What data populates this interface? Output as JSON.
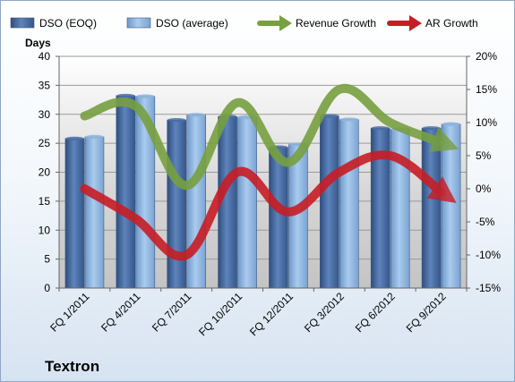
{
  "company_label": "Textron",
  "chart_data": {
    "type": "bar",
    "title": "",
    "left_axis_title": "Days",
    "categories": [
      "FQ 1/2011",
      "FQ 4/2011",
      "FQ 7/2011",
      "FQ 10/2011",
      "FQ 12/2011",
      "FQ 3/2012",
      "FQ 6/2012",
      "FQ 9/2012"
    ],
    "ylim": [
      0,
      40
    ],
    "yticks": [
      "0",
      "5",
      "10",
      "15",
      "20",
      "25",
      "30",
      "35",
      "40"
    ],
    "y2lim": [
      -15,
      20
    ],
    "y2ticks": [
      "-15%",
      "-10%",
      "-5%",
      "0%",
      "5%",
      "10%",
      "15%",
      "20%"
    ],
    "legend_placement": "top",
    "series": [
      {
        "name": "DSO (EOQ)",
        "kind": "bar",
        "axis": "left",
        "color": "#4a6fa5",
        "values": [
          25.8,
          33.2,
          29.0,
          29.6,
          24.3,
          29.7,
          27.6,
          27.6
        ]
      },
      {
        "name": "DSO (average)",
        "kind": "bar",
        "axis": "left",
        "color": "#8fb4de",
        "values": [
          26.1,
          33.1,
          29.9,
          29.5,
          24.8,
          29.1,
          27.4,
          28.3
        ]
      },
      {
        "name": "Revenue Growth",
        "kind": "line-arrow",
        "axis": "right",
        "color": "#77a040",
        "values": [
          11.0,
          12.5,
          0.5,
          13.0,
          4.0,
          15.0,
          10.0,
          7.0
        ]
      },
      {
        "name": "AR Growth",
        "kind": "line-arrow",
        "axis": "right",
        "color": "#c81d25",
        "values": [
          0.0,
          -4.5,
          -10.0,
          2.5,
          -3.5,
          2.5,
          5.0,
          -0.5
        ]
      }
    ]
  }
}
